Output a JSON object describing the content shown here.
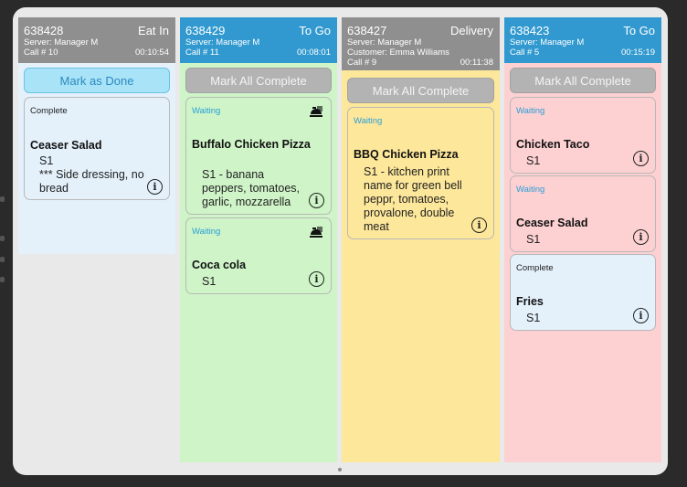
{
  "columns": [
    {
      "order": "638428",
      "type": "Eat In",
      "line1": "Server: Manager M",
      "line2": "Call # 10",
      "timer": "00:10:54",
      "header_color": "gray",
      "action": "Mark as Done",
      "body_color": "#e4f1fb",
      "cards": [
        {
          "status": "Complete",
          "item": "Ceaser Salad",
          "seat": "S1",
          "note": "*** Side dressing, no bread"
        }
      ]
    },
    {
      "order": "638429",
      "type": "To Go",
      "line1": "Server: Manager M",
      "line2": "Call # 11",
      "timer": "00:08:01",
      "header_color": "blue",
      "action": "Mark All Complete",
      "body_color": "#cff4c8",
      "cards": [
        {
          "status": "Waiting",
          "item": "Buffalo Chicken Pizza",
          "detail": "S1 - banana peppers, tomatoes, garlic, mozzarella",
          "icon": "food-ready-icon"
        },
        {
          "status": "Waiting",
          "item": "Coca cola",
          "seat": "S1",
          "icon": "food-ready-icon"
        }
      ]
    },
    {
      "order": "638427",
      "type": "Delivery",
      "line1": "Server: Manager M",
      "line2": "Customer: Emma Williams",
      "line3": "Call # 9",
      "timer": "00:11:38",
      "header_color": "gray",
      "action": "Mark All Complete",
      "body_color": "#fde79a",
      "cards": [
        {
          "status": "Waiting",
          "item": "BBQ Chicken Pizza",
          "detail": "S1 - kitchen print name for green bell peppr, tomatoes, provalone, double meat"
        }
      ]
    },
    {
      "order": "638423",
      "type": "To Go",
      "line1": "Server: Manager M",
      "line2": "Call # 5",
      "timer": "00:15:19",
      "header_color": "blue",
      "action": "Mark All Complete",
      "body_color": "#fdd0d2",
      "cards": [
        {
          "status": "Waiting",
          "item": "Chicken Taco",
          "seat": "S1"
        },
        {
          "status": "Waiting",
          "item": "Ceaser Salad",
          "seat": "S1"
        },
        {
          "status": "Complete",
          "item": "Fries",
          "seat": "S1"
        }
      ]
    }
  ],
  "colors": {
    "header_gray": "#8f8f8f",
    "header_blue": "#3199cf",
    "waiting_text": "#2a9fd6",
    "complete_card": "#e4f1fb",
    "green_card": "#cff4c8",
    "yellow_card": "#fde79a",
    "pink_card": "#fdd0d2"
  }
}
